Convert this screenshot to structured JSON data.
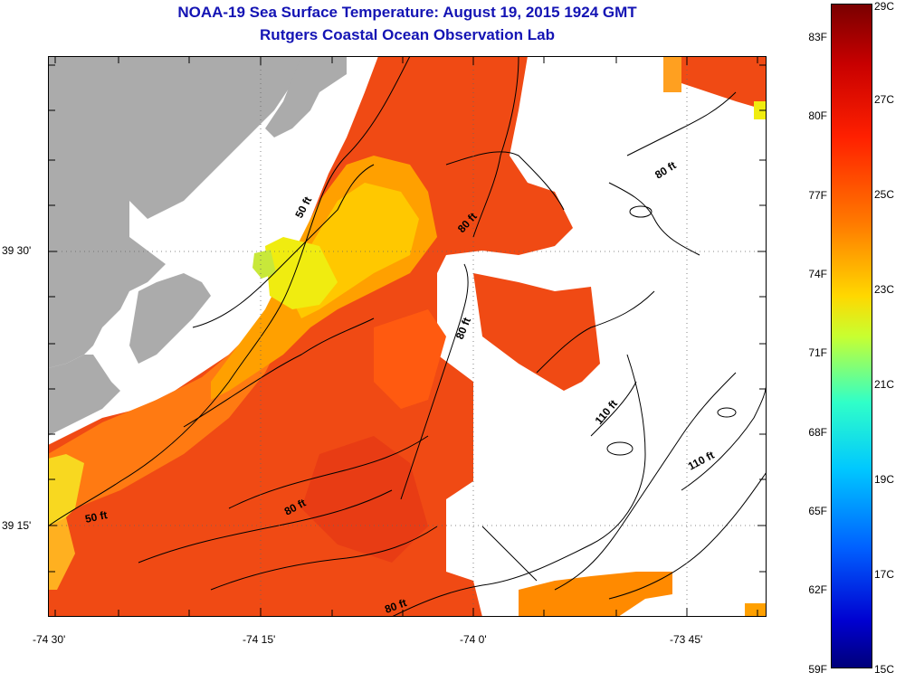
{
  "title": "NOAA-19 Sea Surface Temperature:  August 19, 2015 1924 GMT",
  "subtitle": "Rutgers Coastal Ocean Observation Lab",
  "axes": {
    "lon_ticks": [
      "-74 30'",
      "-74 15'",
      "-74 0'",
      "-73 45'"
    ],
    "lat_ticks": [
      "39 30'",
      "39 15'"
    ]
  },
  "contours": {
    "labels": [
      "50 ft",
      "80 ft",
      "80 ft",
      "80 ft",
      "110 ft",
      "110 ft",
      "50 ft",
      "80 ft",
      "80 ft"
    ]
  },
  "colorbar": {
    "fahrenheit": [
      "83F",
      "80F",
      "77F",
      "74F",
      "71F",
      "68F",
      "65F",
      "62F",
      "59F"
    ],
    "celsius": [
      "29C",
      "27C",
      "25C",
      "23C",
      "21C",
      "19C",
      "17C",
      "15C"
    ]
  },
  "colors": {
    "title": "#1414b4",
    "land": "#ababab",
    "sst_warm": "#f24a10",
    "sst_mid": "#ff8a00",
    "sst_cool": "#f0f000"
  }
}
